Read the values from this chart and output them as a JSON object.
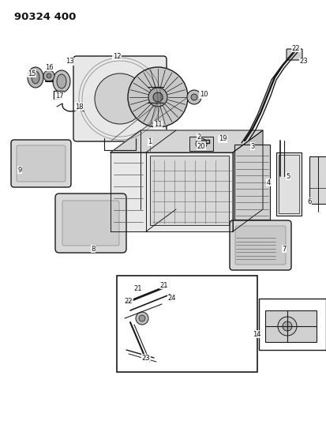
{
  "title": "90324 400",
  "bg_color": "#ffffff",
  "text_color": "#111111",
  "fig_width": 4.13,
  "fig_height": 5.33,
  "dpi": 100,
  "label_fontsize": 6.0,
  "title_fontsize": 9.5
}
